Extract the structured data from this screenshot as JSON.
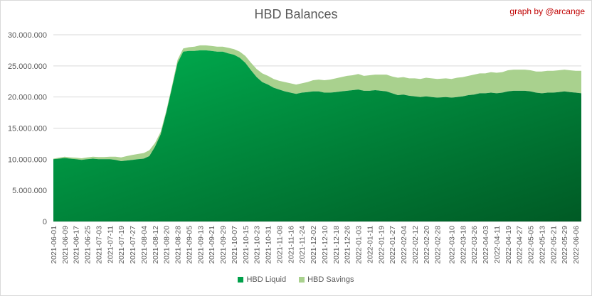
{
  "chart_data": {
    "type": "area",
    "title": "HBD Balances",
    "credit": "graph by @arcange",
    "xlabel": "",
    "ylabel": "",
    "ylim": [
      0,
      30000000
    ],
    "y_ticks": [
      "0",
      "5.000.000",
      "10.000.000",
      "15.000.000",
      "20.000.000",
      "25.000.000",
      "30.000.000"
    ],
    "grid": "horizontal",
    "legend_position": "bottom",
    "stacked": true,
    "x_ticks": [
      "2021-06-01",
      "2021-06-09",
      "2021-06-17",
      "2021-06-25",
      "2021-07-03",
      "2021-07-11",
      "2021-07-19",
      "2021-07-27",
      "2021-08-04",
      "2021-08-12",
      "2021-08-20",
      "2021-08-28",
      "2021-09-05",
      "2021-09-13",
      "2021-09-21",
      "2021-09-29",
      "2021-10-07",
      "2021-10-15",
      "2021-10-23",
      "2021-10-31",
      "2021-11-08",
      "2021-11-16",
      "2021-11-24",
      "2021-12-02",
      "2021-12-10",
      "2021-12-18",
      "2021-12-26",
      "2022-01-03",
      "2022-01-11",
      "2022-01-19",
      "2022-01-27",
      "2022-02-04",
      "2022-02-12",
      "2022-02-20",
      "2022-02-28",
      "2022-03-10",
      "2022-03-18",
      "2022-03-26",
      "2022-04-03",
      "2022-04-11",
      "2022-04-19",
      "2022-04-27",
      "2022-05-05",
      "2022-05-13",
      "2022-05-21",
      "2022-05-29",
      "2022-06-06"
    ],
    "x": [
      "2021-06-01",
      "2021-06-05",
      "2021-06-09",
      "2021-06-13",
      "2021-06-17",
      "2021-06-21",
      "2021-06-25",
      "2021-06-29",
      "2021-07-03",
      "2021-07-07",
      "2021-07-11",
      "2021-07-15",
      "2021-07-19",
      "2021-07-23",
      "2021-07-27",
      "2021-07-31",
      "2021-08-04",
      "2021-08-08",
      "2021-08-12",
      "2021-08-16",
      "2021-08-20",
      "2021-08-24",
      "2021-08-28",
      "2021-09-01",
      "2021-09-05",
      "2021-09-09",
      "2021-09-13",
      "2021-09-17",
      "2021-09-21",
      "2021-09-25",
      "2021-09-29",
      "2021-10-03",
      "2021-10-07",
      "2021-10-11",
      "2021-10-15",
      "2021-10-19",
      "2021-10-23",
      "2021-10-27",
      "2021-10-31",
      "2021-11-04",
      "2021-11-08",
      "2021-11-12",
      "2021-11-16",
      "2021-11-20",
      "2021-11-24",
      "2021-11-28",
      "2021-12-02",
      "2021-12-06",
      "2021-12-10",
      "2021-12-14",
      "2021-12-18",
      "2021-12-22",
      "2021-12-26",
      "2021-12-30",
      "2022-01-03",
      "2022-01-07",
      "2022-01-11",
      "2022-01-15",
      "2022-01-19",
      "2022-01-23",
      "2022-01-27",
      "2022-01-31",
      "2022-02-04",
      "2022-02-08",
      "2022-02-12",
      "2022-02-16",
      "2022-02-20",
      "2022-02-24",
      "2022-02-28",
      "2022-03-06",
      "2022-03-10",
      "2022-03-14",
      "2022-03-18",
      "2022-03-22",
      "2022-03-26",
      "2022-03-30",
      "2022-04-03",
      "2022-04-07",
      "2022-04-11",
      "2022-04-15",
      "2022-04-19",
      "2022-04-23",
      "2022-04-27",
      "2022-05-01",
      "2022-05-05",
      "2022-05-09",
      "2022-05-13",
      "2022-05-17",
      "2022-05-21",
      "2022-05-25",
      "2022-05-29",
      "2022-06-02",
      "2022-06-06",
      "2022-06-10"
    ],
    "series": [
      {
        "name": "HBD Liquid",
        "color": "#00a04a",
        "values": [
          10000000,
          10100000,
          10200000,
          10100000,
          10000000,
          9900000,
          10000000,
          10100000,
          10000000,
          10000000,
          10000000,
          9900000,
          9700000,
          9800000,
          9900000,
          10000000,
          10100000,
          10500000,
          12000000,
          14000000,
          17500000,
          21500000,
          25500000,
          27300000,
          27400000,
          27400000,
          27500000,
          27500000,
          27400000,
          27300000,
          27300000,
          27000000,
          26800000,
          26300000,
          25500000,
          24300000,
          23200000,
          22400000,
          22000000,
          21500000,
          21200000,
          20900000,
          20700000,
          20500000,
          20700000,
          20800000,
          20900000,
          20900000,
          20700000,
          20700000,
          20800000,
          20900000,
          21000000,
          21100000,
          21200000,
          21000000,
          21000000,
          21100000,
          21000000,
          20900000,
          20600000,
          20300000,
          20400000,
          20200000,
          20100000,
          20000000,
          20100000,
          20000000,
          19900000,
          20000000,
          19900000,
          20000000,
          20100000,
          20300000,
          20400000,
          20600000,
          20600000,
          20700000,
          20600000,
          20700000,
          20900000,
          21000000,
          21000000,
          21000000,
          20900000,
          20700000,
          20600000,
          20700000,
          20700000,
          20800000,
          20900000,
          20800000,
          20700000,
          20600000
        ]
      },
      {
        "name": "HBD Savings",
        "color": "#a9d18e",
        "values": [
          100000,
          150000,
          200000,
          200000,
          250000,
          250000,
          300000,
          300000,
          350000,
          350000,
          400000,
          500000,
          600000,
          700000,
          800000,
          850000,
          900000,
          950000,
          600000,
          400000,
          300000,
          300000,
          500000,
          500000,
          600000,
          700000,
          800000,
          800000,
          800000,
          800000,
          800000,
          900000,
          900000,
          1000000,
          1100000,
          1200000,
          1300000,
          1400000,
          1400000,
          1400000,
          1400000,
          1500000,
          1500000,
          1500000,
          1500000,
          1600000,
          1800000,
          1900000,
          2000000,
          2100000,
          2200000,
          2300000,
          2400000,
          2400000,
          2500000,
          2400000,
          2500000,
          2500000,
          2600000,
          2700000,
          2700000,
          2800000,
          2800000,
          2800000,
          2900000,
          2900000,
          3000000,
          3000000,
          3000000,
          3000000,
          3000000,
          3100000,
          3100000,
          3100000,
          3200000,
          3200000,
          3200000,
          3300000,
          3300000,
          3300000,
          3400000,
          3400000,
          3400000,
          3400000,
          3400000,
          3400000,
          3500000,
          3500000,
          3500000,
          3500000,
          3500000,
          3500000,
          3500000,
          3600000
        ]
      }
    ]
  }
}
